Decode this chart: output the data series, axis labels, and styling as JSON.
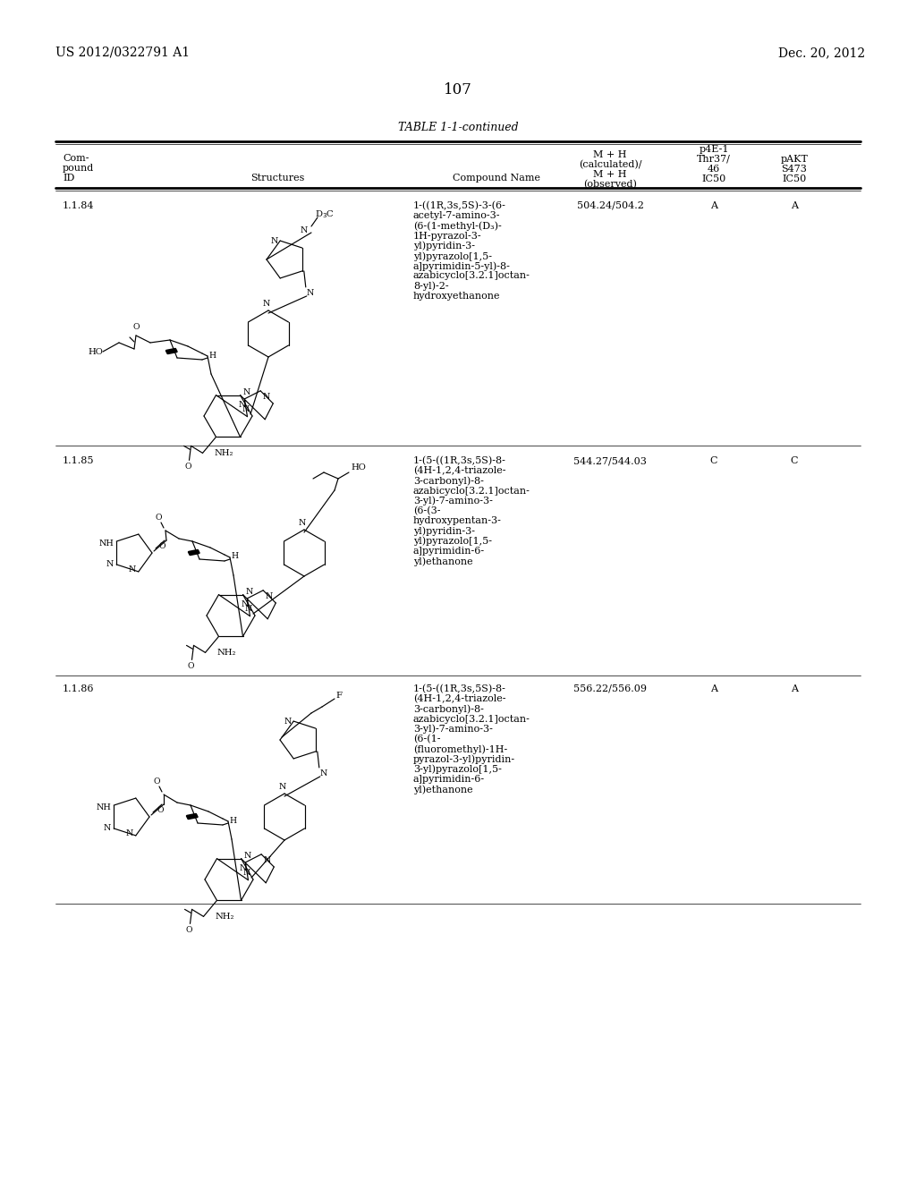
{
  "page_left_header": "US 2012/0322791 A1",
  "page_right_header": "Dec. 20, 2012",
  "page_number": "107",
  "table_title": "TABLE 1-1-continued",
  "background_color": "#ffffff",
  "rows": [
    {
      "id": "1.1.84",
      "compound_name": [
        "1-((1R,3s,5S)-3-(6-",
        "acetyl-7-amino-3-",
        "(6-(1-methyl-(D₃)-",
        "1H-pyrazol-3-",
        "yl)pyridin-3-",
        "yl)pyrazolo[1,5-",
        "a]pyrimidin-5-yl)-8-",
        "azabicyclo[3.2.1]octan-",
        "8-yl)-2-",
        "hydroxyethanone"
      ],
      "mh": "504.24/504.2",
      "pakt": "A",
      "p4e1": "A"
    },
    {
      "id": "1.1.85",
      "compound_name": [
        "1-(5-((1R,3s,5S)-8-",
        "(4H-1,2,4-triazole-",
        "3-carbonyl)-8-",
        "azabicyclo[3.2.1]octan-",
        "3-yl)-7-amino-3-",
        "(6-(3-",
        "hydroxypentan-3-",
        "yl)pyridin-3-",
        "yl)pyrazolo[1,5-",
        "a]pyrimidin-6-",
        "yl)ethanone"
      ],
      "mh": "544.27/544.03",
      "pakt": "C",
      "p4e1": "C"
    },
    {
      "id": "1.1.86",
      "compound_name": [
        "1-(5-((1R,3s,5S)-8-",
        "(4H-1,2,4-triazole-",
        "3-carbonyl)-8-",
        "azabicyclo[3.2.1]octan-",
        "3-yl)-7-amino-3-",
        "(6-(1-",
        "(fluoromethyl)-1H-",
        "pyrazol-3-yl)pyridin-",
        "3-yl)pyrazolo[1,5-",
        "a]pyrimidin-6-",
        "yl)ethanone"
      ],
      "mh": "556.22/556.09",
      "pakt": "A",
      "p4e1": "A"
    }
  ]
}
